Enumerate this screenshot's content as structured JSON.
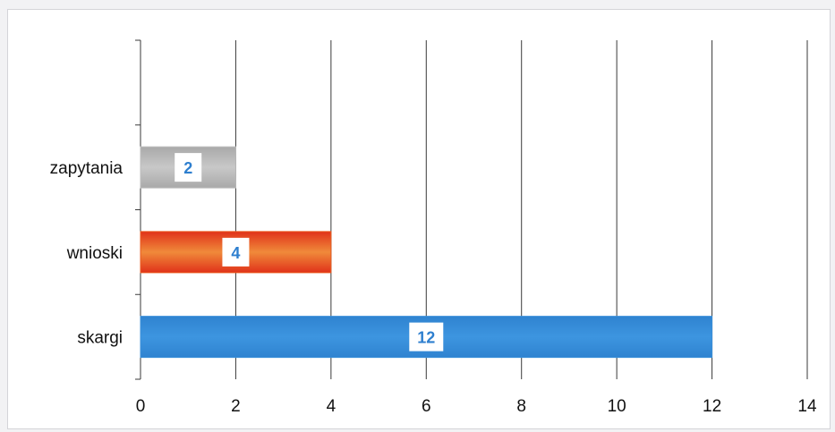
{
  "chart_data": {
    "type": "bar",
    "orientation": "horizontal",
    "categories": [
      "zapytania",
      "wnioski",
      "skargi"
    ],
    "values": [
      2,
      4,
      12
    ],
    "bar_colors": [
      "#bdbdbd",
      "#ea5a1e",
      "#3a8fd9"
    ],
    "data_label_color": "#2e7fcf",
    "xlim": [
      0,
      14
    ],
    "x_ticks": [
      "0",
      "2",
      "4",
      "6",
      "8",
      "10",
      "12",
      "14"
    ],
    "grid": "vertical",
    "legend": "none"
  }
}
